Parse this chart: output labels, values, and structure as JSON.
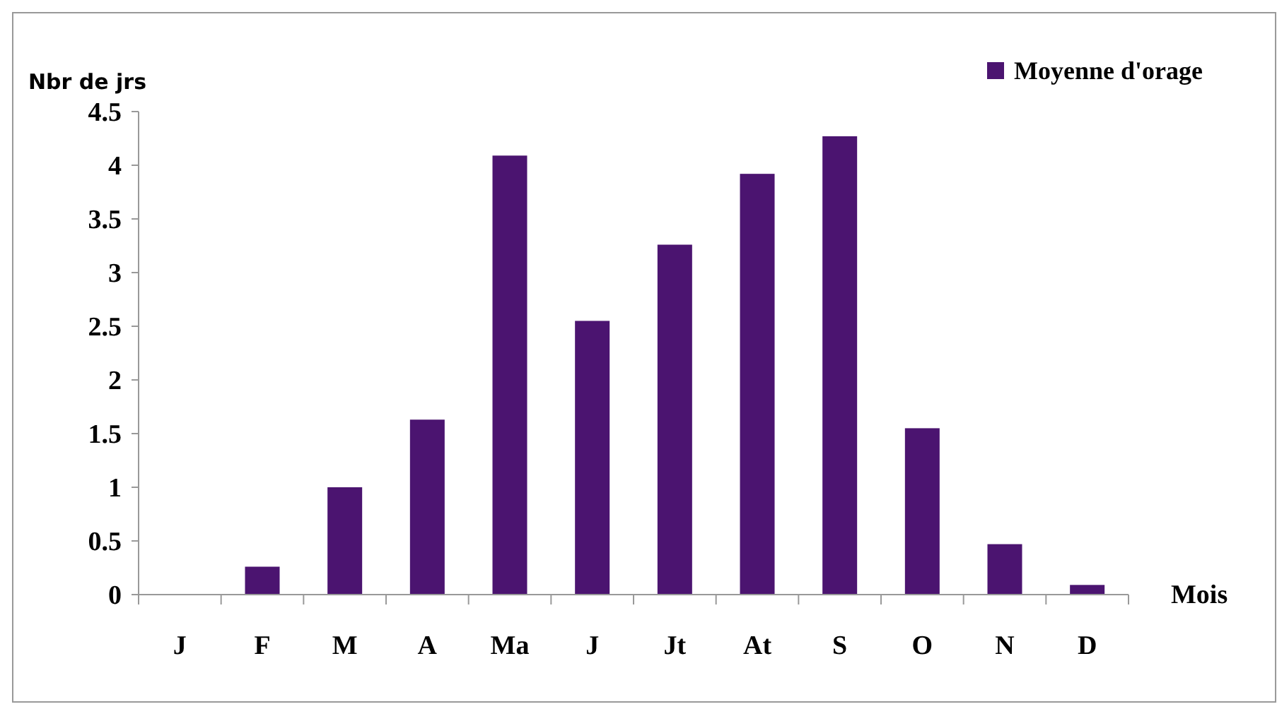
{
  "chart_data": {
    "type": "bar",
    "ylabel": "Nbr de jrs",
    "xlabel": "Mois",
    "categories": [
      "J",
      "F",
      "M",
      "A",
      "Ma",
      "J",
      "Jt",
      "At",
      "S",
      "O",
      "N",
      "D"
    ],
    "series": [
      {
        "name": "Moyenne d'orage",
        "color": "#4b1470",
        "values": [
          0,
          0.26,
          1.0,
          1.63,
          4.09,
          2.55,
          3.26,
          3.92,
          4.27,
          1.55,
          0.47,
          0.09
        ]
      }
    ],
    "ylim": [
      0,
      4.5
    ],
    "yticks": [
      0,
      0.5,
      1,
      1.5,
      2,
      2.5,
      3,
      3.5,
      4,
      4.5
    ],
    "grid": false,
    "legend": "top right"
  }
}
